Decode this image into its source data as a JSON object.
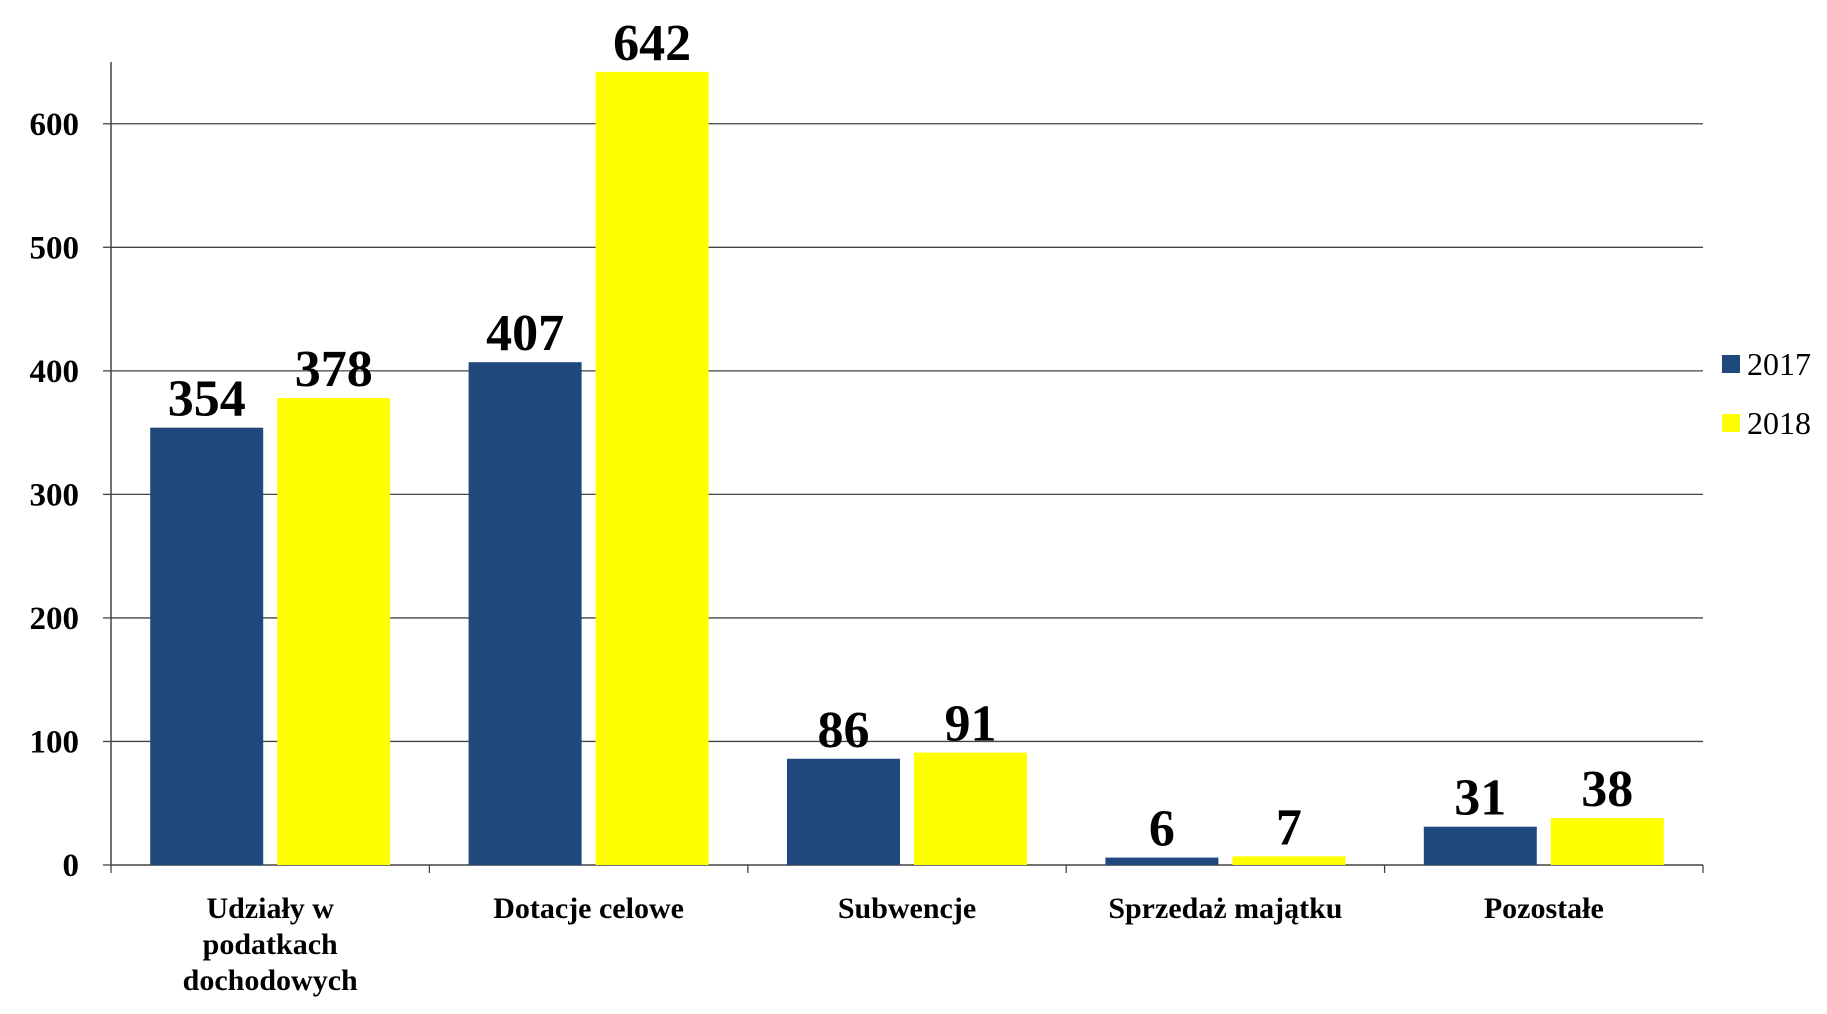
{
  "chart_data": {
    "type": "bar",
    "categories": [
      "Udziały w\npodatkach\ndochodowych",
      "Dotacje celowe",
      "Subwencje",
      "Sprzedaż majątku",
      "Pozostałe"
    ],
    "series": [
      {
        "name": "2017",
        "color": "#1f497d",
        "values": [
          354,
          407,
          86,
          6,
          31
        ]
      },
      {
        "name": "2018",
        "color": "#ffff00",
        "values": [
          378,
          642,
          91,
          7,
          38
        ]
      }
    ],
    "ylim": [
      0,
      650
    ],
    "yticks": [
      0,
      100,
      200,
      300,
      400,
      500,
      600
    ],
    "grid": true,
    "legend": "right"
  }
}
